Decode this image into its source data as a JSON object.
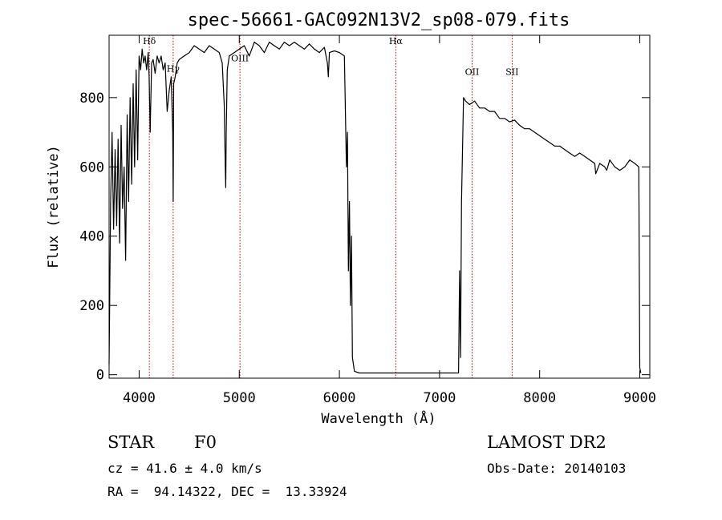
{
  "chart_data": {
    "type": "line",
    "title": "spec-56661-GAC092N13V2_sp08-079.fits",
    "xlabel": "Wavelength (Å)",
    "ylabel": "Flux (relative)",
    "xlim": [
      3700,
      9100
    ],
    "ylim": [
      -10,
      980
    ],
    "x_ticks": [
      4000,
      5000,
      6000,
      7000,
      8000,
      9000
    ],
    "y_ticks": [
      0,
      200,
      400,
      600,
      800
    ],
    "grid": false,
    "spectral_lines": [
      {
        "name": "Hδ",
        "wavelength": 4102,
        "label_y": 955
      },
      {
        "name": "Hγ",
        "wavelength": 4340,
        "label_y": 875
      },
      {
        "name": "OIII",
        "wavelength": 5007,
        "label_y": 905
      },
      {
        "name": "Hα",
        "wavelength": 6563,
        "label_y": 955
      },
      {
        "name": "OII",
        "wavelength": 7325,
        "label_y": 865
      },
      {
        "name": "SII",
        "wavelength": 7725,
        "label_y": 865
      }
    ],
    "series": [
      {
        "x": [
          3700,
          3715,
          3730,
          3745,
          3760,
          3775,
          3790,
          3805,
          3820,
          3835,
          3850,
          3865,
          3880,
          3895,
          3910,
          3925,
          3940,
          3955,
          3970,
          3985,
          4000,
          4015,
          4030,
          4045,
          4060,
          4075,
          4090,
          4100,
          4110,
          4125,
          4140,
          4160,
          4180,
          4200,
          4220,
          4240,
          4260,
          4280,
          4300,
          4320,
          4335,
          4340,
          4345,
          4360,
          4380,
          4400,
          4450,
          4500,
          4550,
          4600,
          4650,
          4700,
          4750,
          4800,
          4830,
          4850,
          4860,
          4865,
          4870,
          4880,
          4900,
          4950,
          5000,
          5050,
          5100,
          5150,
          5200,
          5250,
          5300,
          5350,
          5400,
          5450,
          5500,
          5550,
          5600,
          5650,
          5700,
          5750,
          5800,
          5850,
          5880,
          5890,
          5900,
          5950,
          6000,
          6050,
          6070,
          6080,
          6090,
          6100,
          6110,
          6120,
          6130,
          6150,
          6200,
          6300,
          6400,
          6500,
          6600,
          6700,
          6800,
          6900,
          7000,
          7100,
          7150,
          7180,
          7190,
          7200,
          7210,
          7220,
          7240,
          7260,
          7300,
          7350,
          7400,
          7450,
          7500,
          7550,
          7600,
          7650,
          7700,
          7750,
          7800,
          7850,
          7900,
          7950,
          8000,
          8050,
          8100,
          8150,
          8200,
          8250,
          8300,
          8350,
          8400,
          8450,
          8500,
          8550,
          8560,
          8600,
          8650,
          8670,
          8700,
          8750,
          8800,
          8850,
          8900,
          8950,
          8990,
          9000,
          9010
        ],
        "y": [
          30,
          500,
          700,
          420,
          650,
          430,
          680,
          380,
          720,
          480,
          600,
          330,
          750,
          500,
          800,
          550,
          840,
          600,
          880,
          620,
          920,
          880,
          940,
          900,
          920,
          880,
          930,
          860,
          700,
          900,
          910,
          870,
          920,
          900,
          920,
          880,
          900,
          760,
          820,
          860,
          700,
          500,
          840,
          860,
          900,
          910,
          920,
          930,
          950,
          940,
          930,
          950,
          940,
          930,
          900,
          780,
          600,
          540,
          700,
          880,
          920,
          930,
          940,
          950,
          920,
          960,
          950,
          930,
          960,
          950,
          940,
          960,
          950,
          960,
          950,
          940,
          955,
          940,
          930,
          945,
          900,
          860,
          930,
          935,
          930,
          920,
          600,
          700,
          300,
          500,
          200,
          400,
          50,
          10,
          5,
          5,
          5,
          5,
          5,
          5,
          5,
          5,
          5,
          5,
          5,
          5,
          5,
          300,
          50,
          500,
          800,
          790,
          780,
          790,
          770,
          770,
          760,
          760,
          740,
          740,
          730,
          735,
          720,
          710,
          710,
          700,
          690,
          680,
          670,
          660,
          660,
          650,
          640,
          630,
          640,
          630,
          620,
          610,
          580,
          610,
          600,
          590,
          620,
          600,
          590,
          600,
          620,
          610,
          600,
          20,
          5
        ]
      }
    ],
    "info": {
      "class": "STAR",
      "subclass": "F0",
      "cz": "cz = 41.6 ± 4.0 km/s",
      "radec": "RA =  94.14322, DEC =  13.33924",
      "survey": "LAMOST DR2",
      "obs_date": "Obs-Date: 20140103"
    }
  }
}
